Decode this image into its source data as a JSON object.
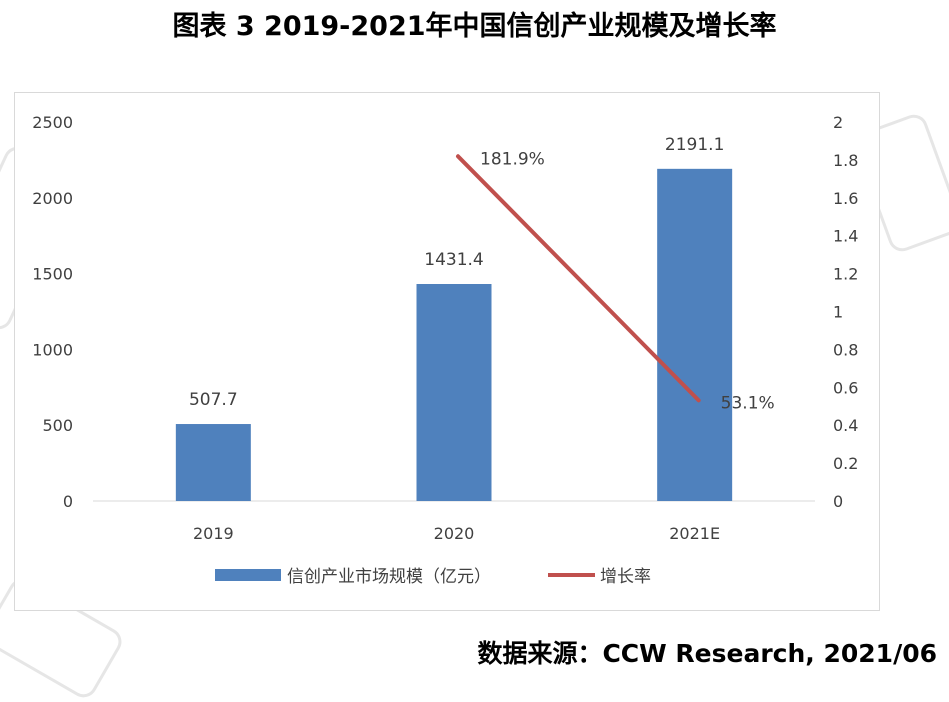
{
  "title": "图表 3 2019-2021年中国信创产业规模及增长率",
  "source": "数据来源：CCW Research, 2021/06",
  "chart_data": {
    "type": "bar",
    "categories": [
      "2019",
      "2020",
      "2021E"
    ],
    "series": [
      {
        "name": "信创产业市场规模（亿元）",
        "type": "bar",
        "axis": "left",
        "values": [
          507.7,
          1431.4,
          2191.1
        ],
        "labels": [
          "507.7",
          "1431.4",
          "2191.1"
        ],
        "color": "#4f81bd"
      },
      {
        "name": "增长率",
        "type": "line",
        "axis": "right",
        "values": [
          null,
          1.819,
          0.531
        ],
        "labels": [
          "",
          "181.9%",
          "53.1%"
        ],
        "color": "#c0504d"
      }
    ],
    "y_left": {
      "ylim": [
        0,
        2500
      ],
      "ticks": [
        0,
        500,
        1000,
        1500,
        2000,
        2500
      ]
    },
    "y_right": {
      "ylim": [
        0,
        2
      ],
      "ticks": [
        "0",
        "0.2",
        "0.4",
        "0.6",
        "0.8",
        "1",
        "1.2",
        "1.4",
        "1.6",
        "1.8",
        "2"
      ]
    },
    "legend_position": "bottom",
    "grid": false,
    "xlabel": "",
    "ylabel": ""
  }
}
